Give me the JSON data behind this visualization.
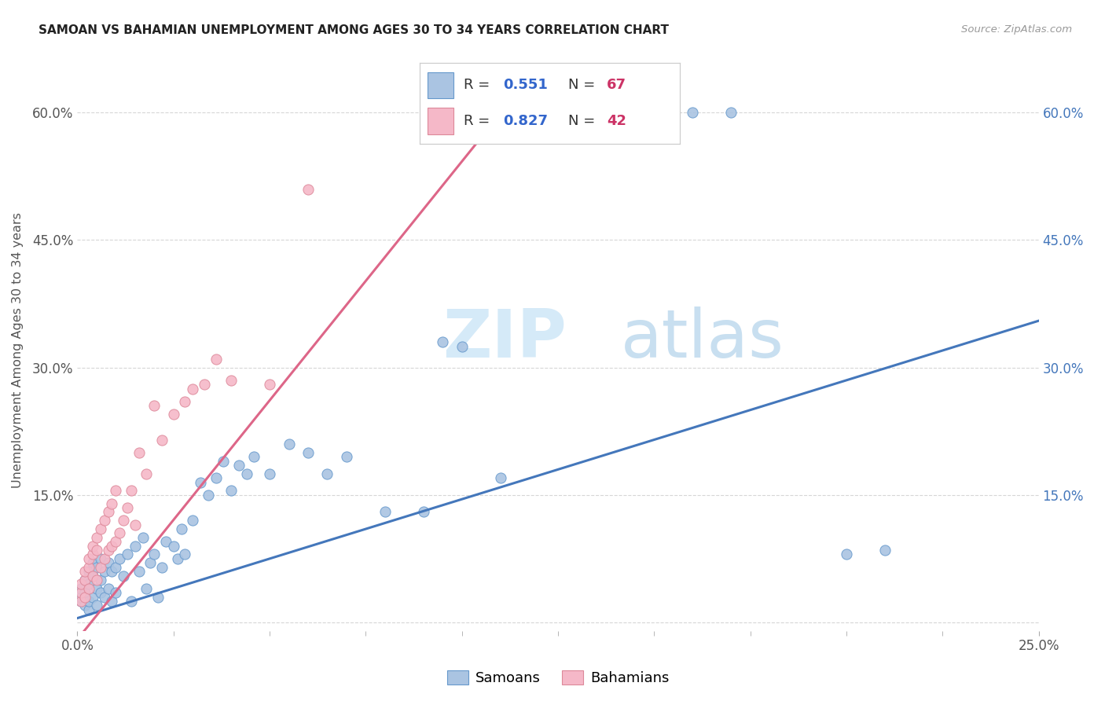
{
  "title": "SAMOAN VS BAHAMIAN UNEMPLOYMENT AMONG AGES 30 TO 34 YEARS CORRELATION CHART",
  "source": "Source: ZipAtlas.com",
  "ylabel": "Unemployment Among Ages 30 to 34 years",
  "xlim": [
    0.0,
    0.25
  ],
  "ylim": [
    -0.01,
    0.65
  ],
  "xtick_positions": [
    0.0,
    0.25
  ],
  "xtick_labels": [
    "0.0%",
    "25.0%"
  ],
  "ytick_positions": [
    0.0,
    0.15,
    0.3,
    0.45,
    0.6
  ],
  "ytick_labels_left": [
    "",
    "15.0%",
    "30.0%",
    "45.0%",
    "60.0%"
  ],
  "ytick_labels_right": [
    "",
    "15.0%",
    "30.0%",
    "45.0%",
    "60.0%"
  ],
  "blue_color": "#aac4e2",
  "pink_color": "#f5b8c8",
  "blue_edge_color": "#6699cc",
  "pink_edge_color": "#dd8899",
  "blue_line_color": "#4477bb",
  "pink_line_color": "#dd6688",
  "legend_r_color": "#3366cc",
  "legend_n_color": "#cc3366",
  "watermark_zip": "ZIP",
  "watermark_atlas": "atlas",
  "blue_line_x0": 0.0,
  "blue_line_y0": 0.005,
  "blue_line_x1": 0.25,
  "blue_line_y1": 0.355,
  "pink_line_x0": 0.0,
  "pink_line_y0": -0.02,
  "pink_line_x1": 0.12,
  "pink_line_y1": 0.655,
  "blue_scatter_x": [
    0.001,
    0.001,
    0.001,
    0.002,
    0.002,
    0.002,
    0.003,
    0.003,
    0.003,
    0.003,
    0.004,
    0.004,
    0.004,
    0.005,
    0.005,
    0.005,
    0.006,
    0.006,
    0.006,
    0.007,
    0.007,
    0.008,
    0.008,
    0.009,
    0.009,
    0.01,
    0.01,
    0.011,
    0.012,
    0.013,
    0.014,
    0.015,
    0.016,
    0.017,
    0.018,
    0.019,
    0.02,
    0.021,
    0.022,
    0.023,
    0.025,
    0.026,
    0.027,
    0.028,
    0.03,
    0.032,
    0.034,
    0.036,
    0.038,
    0.04,
    0.042,
    0.044,
    0.046,
    0.05,
    0.055,
    0.06,
    0.065,
    0.07,
    0.08,
    0.09,
    0.095,
    0.1,
    0.11,
    0.16,
    0.17,
    0.2,
    0.21
  ],
  "blue_scatter_y": [
    0.025,
    0.03,
    0.04,
    0.02,
    0.035,
    0.05,
    0.015,
    0.025,
    0.045,
    0.06,
    0.03,
    0.055,
    0.07,
    0.02,
    0.04,
    0.065,
    0.035,
    0.05,
    0.075,
    0.03,
    0.06,
    0.04,
    0.07,
    0.025,
    0.06,
    0.035,
    0.065,
    0.075,
    0.055,
    0.08,
    0.025,
    0.09,
    0.06,
    0.1,
    0.04,
    0.07,
    0.08,
    0.03,
    0.065,
    0.095,
    0.09,
    0.075,
    0.11,
    0.08,
    0.12,
    0.165,
    0.15,
    0.17,
    0.19,
    0.155,
    0.185,
    0.175,
    0.195,
    0.175,
    0.21,
    0.2,
    0.175,
    0.195,
    0.13,
    0.13,
    0.33,
    0.325,
    0.17,
    0.6,
    0.6,
    0.08,
    0.085
  ],
  "pink_scatter_x": [
    0.001,
    0.001,
    0.001,
    0.002,
    0.002,
    0.002,
    0.003,
    0.003,
    0.003,
    0.004,
    0.004,
    0.004,
    0.005,
    0.005,
    0.005,
    0.006,
    0.006,
    0.007,
    0.007,
    0.008,
    0.008,
    0.009,
    0.009,
    0.01,
    0.01,
    0.011,
    0.012,
    0.013,
    0.014,
    0.015,
    0.016,
    0.018,
    0.02,
    0.022,
    0.025,
    0.028,
    0.03,
    0.033,
    0.036,
    0.04,
    0.05,
    0.06
  ],
  "pink_scatter_y": [
    0.025,
    0.035,
    0.045,
    0.03,
    0.05,
    0.06,
    0.04,
    0.065,
    0.075,
    0.055,
    0.08,
    0.09,
    0.05,
    0.085,
    0.1,
    0.065,
    0.11,
    0.075,
    0.12,
    0.085,
    0.13,
    0.09,
    0.14,
    0.095,
    0.155,
    0.105,
    0.12,
    0.135,
    0.155,
    0.115,
    0.2,
    0.175,
    0.255,
    0.215,
    0.245,
    0.26,
    0.275,
    0.28,
    0.31,
    0.285,
    0.28,
    0.51
  ]
}
